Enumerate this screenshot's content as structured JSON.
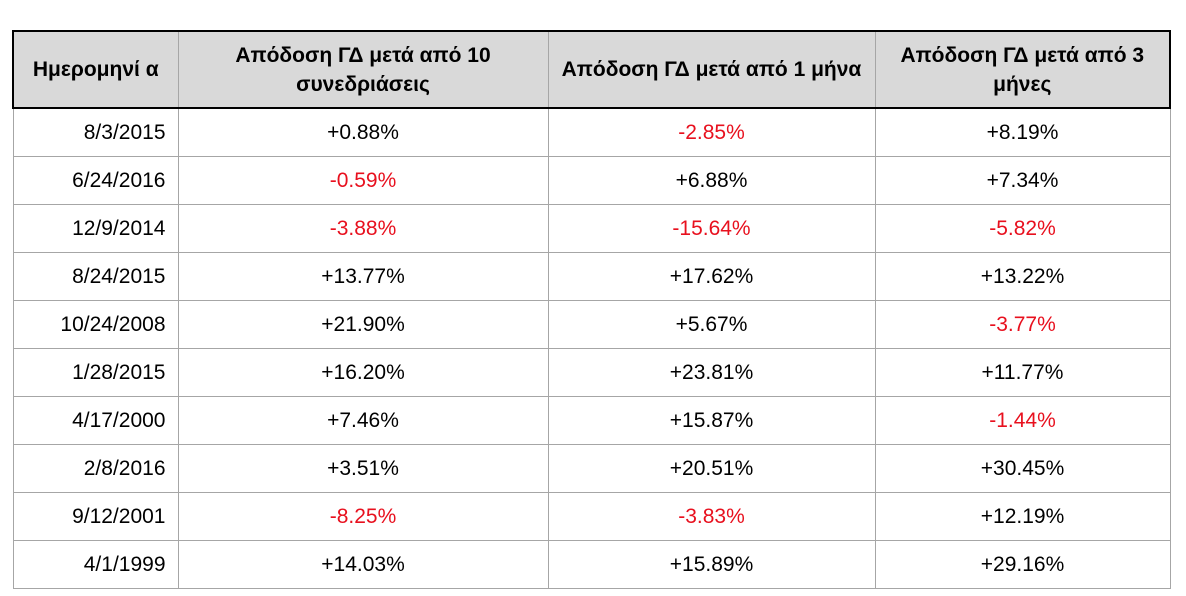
{
  "colors": {
    "negative": "#e8101e",
    "positive": "#000000",
    "header_bg": "#d9d9d9"
  },
  "chart_data": {
    "type": "table",
    "columns": [
      "Ημερομηνί α",
      "Απόδοση ΓΔ μετά από 10 συνεδριάσεις",
      "Απόδοση ΓΔ μετά από 1 μήνα",
      "Απόδοση ΓΔ μετά από 3 μήνες"
    ],
    "rows": [
      [
        "8/3/2015",
        "+0.88%",
        "-2.85%",
        "+8.19%"
      ],
      [
        "6/24/2016",
        "-0.59%",
        "+6.88%",
        "+7.34%"
      ],
      [
        "12/9/2014",
        "-3.88%",
        "-15.64%",
        "-5.82%"
      ],
      [
        "8/24/2015",
        "+13.77%",
        "+17.62%",
        "+13.22%"
      ],
      [
        "10/24/2008",
        "+21.90%",
        "+5.67%",
        "-3.77%"
      ],
      [
        "1/28/2015",
        "+16.20%",
        "+23.81%",
        "+11.77%"
      ],
      [
        "4/17/2000",
        "+7.46%",
        "+15.87%",
        "-1.44%"
      ],
      [
        "2/8/2016",
        "+3.51%",
        "+20.51%",
        "+30.45%"
      ],
      [
        "9/12/2001",
        "-8.25%",
        "-3.83%",
        "+12.19%"
      ],
      [
        "4/1/1999",
        "+14.03%",
        "+15.89%",
        "+29.16%"
      ]
    ]
  }
}
